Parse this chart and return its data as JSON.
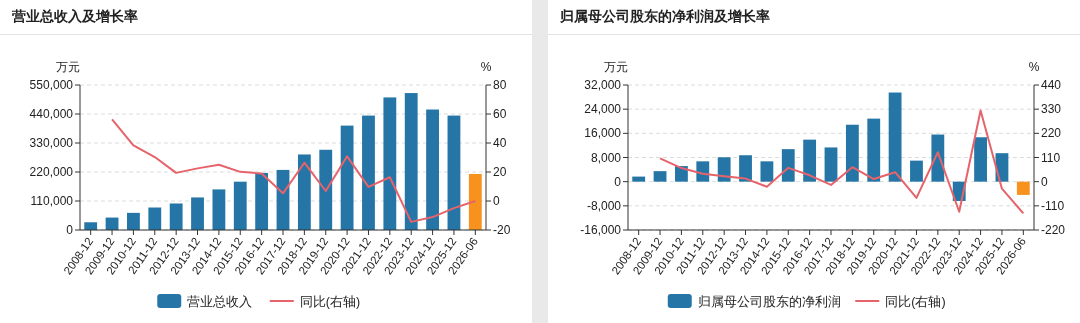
{
  "chart_data": [
    {
      "type": "bar",
      "title": "营业总收入及增长率",
      "ylabel": "万元",
      "y2label": "%",
      "categories": [
        "2008-12",
        "2009-12",
        "2010-12",
        "2011-12",
        "2012-12",
        "2013-12",
        "2014-12",
        "2015-12",
        "2016-12",
        "2017-12",
        "2018-12",
        "2019-12",
        "2020-12",
        "2021-12",
        "2022-12",
        "2023-12",
        "2024-12",
        "2025-12",
        "2026-06"
      ],
      "series": [
        {
          "name": "营业总收入",
          "color": "#2576a6",
          "colors": [
            "#2576a6",
            "#2576a6",
            "#2576a6",
            "#2576a6",
            "#2576a6",
            "#2576a6",
            "#2576a6",
            "#2576a6",
            "#2576a6",
            "#2576a6",
            "#2576a6",
            "#2576a6",
            "#2576a6",
            "#2576a6",
            "#2576a6",
            "#2576a6",
            "#2576a6",
            "#2576a6",
            "#f7921e"
          ],
          "values": [
            29300,
            47100,
            65000,
            85300,
            100600,
            123500,
            154000,
            183300,
            216400,
            227900,
            286500,
            304300,
            396000,
            434000,
            502900,
            519400,
            457000,
            434000,
            212600
          ]
        },
        {
          "name": "同比(右轴)",
          "type": "line",
          "axis": "y2",
          "color": "#e6636b",
          "values": [
            null,
            56.3,
            38.4,
            30.3,
            19.4,
            22.5,
            25,
            20.1,
            19,
            5.3,
            26.4,
            6.9,
            30.8,
            9.7,
            16.4,
            -14.4,
            -11.1,
            -4.9,
            0
          ]
        }
      ],
      "ylim": [
        0,
        550000
      ],
      "yticks": [
        0,
        {
          "value": 110000,
          "label": "110,000"
        },
        {
          "value": 220000,
          "label": "220,000"
        },
        {
          "value": 330000,
          "label": "330,000"
        },
        {
          "value": 440000,
          "label": "440,000"
        },
        {
          "value": 550000,
          "label": "550,000"
        }
      ],
      "y2lim": [
        -20,
        80
      ],
      "y2ticks": [
        -20,
        0,
        20,
        40,
        60,
        80
      ],
      "grid": "y",
      "legend": "bottom"
    },
    {
      "type": "bar",
      "title": "归属母公司股东的净利润及增长率",
      "ylabel": "万元",
      "y2label": "%",
      "categories": [
        "2008-12",
        "2009-12",
        "2010-12",
        "2011-12",
        "2012-12",
        "2013-12",
        "2014-12",
        "2015-12",
        "2016-12",
        "2017-12",
        "2018-12",
        "2019-12",
        "2020-12",
        "2021-12",
        "2022-12",
        "2023-12",
        "2024-12",
        "2025-12",
        "2026-06"
      ],
      "series": [
        {
          "name": "归属母公司股东的净利润",
          "color": "#2576a6",
          "colors": [
            "#2576a6",
            "#2576a6",
            "#2576a6",
            "#2576a6",
            "#2576a6",
            "#2576a6",
            "#2576a6",
            "#2576a6",
            "#2576a6",
            "#2576a6",
            "#2576a6",
            "#2576a6",
            "#2576a6",
            "#2576a6",
            "#2576a6",
            "#2576a6",
            "#2576a6",
            "#2576a6",
            "#f7921e"
          ],
          "values": [
            1680,
            3480,
            5160,
            6730,
            8080,
            8750,
            6730,
            10770,
            13910,
            11330,
            18850,
            20870,
            29510,
            6960,
            15600,
            -6400,
            14700,
            9430,
            -4380
          ]
        },
        {
          "name": "同比(右轴)",
          "type": "line",
          "axis": "y2",
          "color": "#e6636b",
          "values": [
            null,
            106,
            62,
            36,
            25,
            14,
            -23,
            63,
            29,
            -15,
            66,
            12,
            43,
            -74,
            134,
            -137,
            324,
            -32,
            -144
          ]
        }
      ],
      "ylim": [
        -16000,
        32000
      ],
      "yticks": [
        {
          "value": -16000,
          "label": "-16,000"
        },
        {
          "value": -8000,
          "label": "-8,000"
        },
        0,
        {
          "value": 8000,
          "label": "8,000"
        },
        {
          "value": 16000,
          "label": "16,000"
        },
        {
          "value": 24000,
          "label": "24,000"
        },
        {
          "value": 32000,
          "label": "32,000"
        }
      ],
      "y2lim": [
        -220,
        440
      ],
      "y2ticks": [
        -220,
        -110,
        0,
        110,
        220,
        330,
        440
      ],
      "grid": "y",
      "legend": "bottom"
    }
  ]
}
